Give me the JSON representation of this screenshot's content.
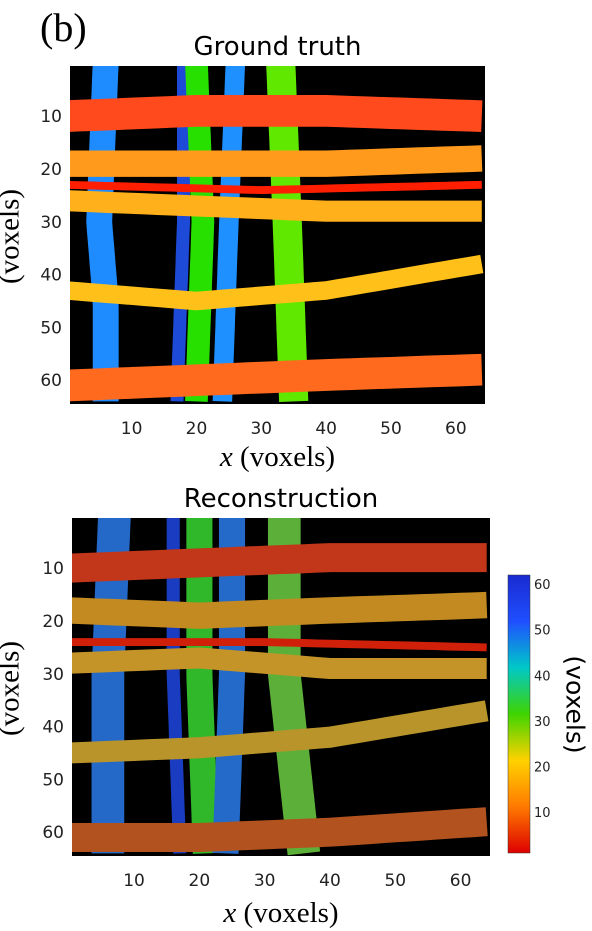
{
  "panel_label": "(b)",
  "colorbar": {
    "label": "(voxels)",
    "ticks": [
      10,
      20,
      30,
      40,
      50,
      60
    ],
    "range": [
      1,
      62
    ],
    "colors": [
      "#dd0000",
      "#ff7a00",
      "#ffd200",
      "#3fd400",
      "#00c8c8",
      "#1f4fff",
      "#1a2ad0"
    ]
  },
  "chart_data": [
    {
      "type": "heatmap",
      "title": "Ground truth",
      "xlabel": "x (voxels)",
      "xlabel_var": "x",
      "xlabel_unit": " (voxels)",
      "ylabel": "(voxels)",
      "xlim": [
        0.5,
        64.5
      ],
      "ylim": [
        0.5,
        64.5
      ],
      "xticks": [
        10,
        20,
        30,
        40,
        50,
        60
      ],
      "yticks": [
        10,
        20,
        30,
        40,
        50,
        60
      ],
      "background": "#000000",
      "horizontal_strands": [
        {
          "y_points": [
            [
              0,
              10
            ],
            [
              20,
              9
            ],
            [
              40,
              9
            ],
            [
              64,
              10
            ]
          ],
          "width": 6,
          "color": "#ff4a1e"
        },
        {
          "y_points": [
            [
              0,
              19
            ],
            [
              20,
              19
            ],
            [
              40,
              19
            ],
            [
              64,
              18
            ]
          ],
          "width": 5,
          "color": "#ff9a1c"
        },
        {
          "y_points": [
            [
              0,
              23
            ],
            [
              30,
              24
            ],
            [
              64,
              23
            ]
          ],
          "width": 1.5,
          "color": "#ff1e00"
        },
        {
          "y_points": [
            [
              0,
              26
            ],
            [
              20,
              27
            ],
            [
              40,
              28
            ],
            [
              64,
              28
            ]
          ],
          "width": 4,
          "color": "#ffb01a"
        },
        {
          "y_points": [
            [
              0,
              43
            ],
            [
              20,
              45
            ],
            [
              40,
              43
            ],
            [
              64,
              38
            ]
          ],
          "width": 3.5,
          "color": "#ffc01a"
        },
        {
          "y_points": [
            [
              0,
              61
            ],
            [
              20,
              60
            ],
            [
              40,
              59
            ],
            [
              64,
              58
            ]
          ],
          "width": 6,
          "color": "#ff6a1e"
        }
      ],
      "vertical_strands": [
        {
          "x_points": [
            [
              0,
              6
            ],
            [
              30,
              5
            ],
            [
              45,
              6
            ],
            [
              64,
              6
            ]
          ],
          "width": 4,
          "color": "#1e8cff"
        },
        {
          "x_points": [
            [
              0,
              18
            ],
            [
              30,
              18
            ],
            [
              64,
              17
            ]
          ],
          "width": 2,
          "color": "#1e4ad8"
        },
        {
          "x_points": [
            [
              0,
              20
            ],
            [
              30,
              21
            ],
            [
              64,
              20
            ]
          ],
          "width": 3.5,
          "color": "#28e000"
        },
        {
          "x_points": [
            [
              0,
              26
            ],
            [
              30,
              25
            ],
            [
              64,
              24
            ]
          ],
          "width": 3,
          "color": "#1e90ff"
        },
        {
          "x_points": [
            [
              0,
              33
            ],
            [
              30,
              34
            ],
            [
              64,
              35
            ]
          ],
          "width": 4.5,
          "color": "#60e800"
        }
      ]
    },
    {
      "type": "heatmap",
      "title": "Reconstruction",
      "xlabel": "x (voxels)",
      "xlabel_var": "x",
      "xlabel_unit": " (voxels)",
      "ylabel": "(voxels)",
      "xlim": [
        0.5,
        64.5
      ],
      "ylim": [
        0.5,
        64.5
      ],
      "xticks": [
        10,
        20,
        30,
        40,
        50,
        60
      ],
      "yticks": [
        10,
        20,
        30,
        40,
        50,
        60
      ],
      "background": "#000000",
      "horizontal_strands": [
        {
          "y_points": [
            [
              0,
              10
            ],
            [
              20,
              9
            ],
            [
              40,
              8
            ],
            [
              64,
              8
            ]
          ],
          "width": 5.5,
          "color": "#c2361a"
        },
        {
          "y_points": [
            [
              0,
              18
            ],
            [
              20,
              19
            ],
            [
              40,
              18
            ],
            [
              64,
              17
            ]
          ],
          "width": 5,
          "color": "#c28a20"
        },
        {
          "y_points": [
            [
              0,
              24
            ],
            [
              30,
              24
            ],
            [
              64,
              25
            ]
          ],
          "width": 1.5,
          "color": "#d0200a"
        },
        {
          "y_points": [
            [
              0,
              28
            ],
            [
              20,
              27
            ],
            [
              40,
              29
            ],
            [
              64,
              29
            ]
          ],
          "width": 4,
          "color": "#c49428"
        },
        {
          "y_points": [
            [
              0,
              45
            ],
            [
              20,
              44
            ],
            [
              40,
              42
            ],
            [
              64,
              37
            ]
          ],
          "width": 4,
          "color": "#b8942a"
        },
        {
          "y_points": [
            [
              0,
              61
            ],
            [
              20,
              61
            ],
            [
              40,
              60
            ],
            [
              64,
              58
            ]
          ],
          "width": 5.5,
          "color": "#b2521e"
        }
      ],
      "vertical_strands": [
        {
          "x_points": [
            [
              0,
              7
            ],
            [
              30,
              6
            ],
            [
              45,
              6
            ],
            [
              64,
              6
            ]
          ],
          "width": 5,
          "color": "#2468c8"
        },
        {
          "x_points": [
            [
              0,
              16
            ],
            [
              30,
              16
            ],
            [
              64,
              17
            ]
          ],
          "width": 2,
          "color": "#1a3cc0"
        },
        {
          "x_points": [
            [
              0,
              20
            ],
            [
              30,
              20
            ],
            [
              64,
              21
            ]
          ],
          "width": 4,
          "color": "#30b82a"
        },
        {
          "x_points": [
            [
              0,
              25
            ],
            [
              30,
              25
            ],
            [
              64,
              24
            ]
          ],
          "width": 4,
          "color": "#246ac8"
        },
        {
          "x_points": [
            [
              0,
              33
            ],
            [
              30,
              33
            ],
            [
              64,
              36
            ]
          ],
          "width": 5,
          "color": "#5cb03a"
        }
      ]
    }
  ]
}
